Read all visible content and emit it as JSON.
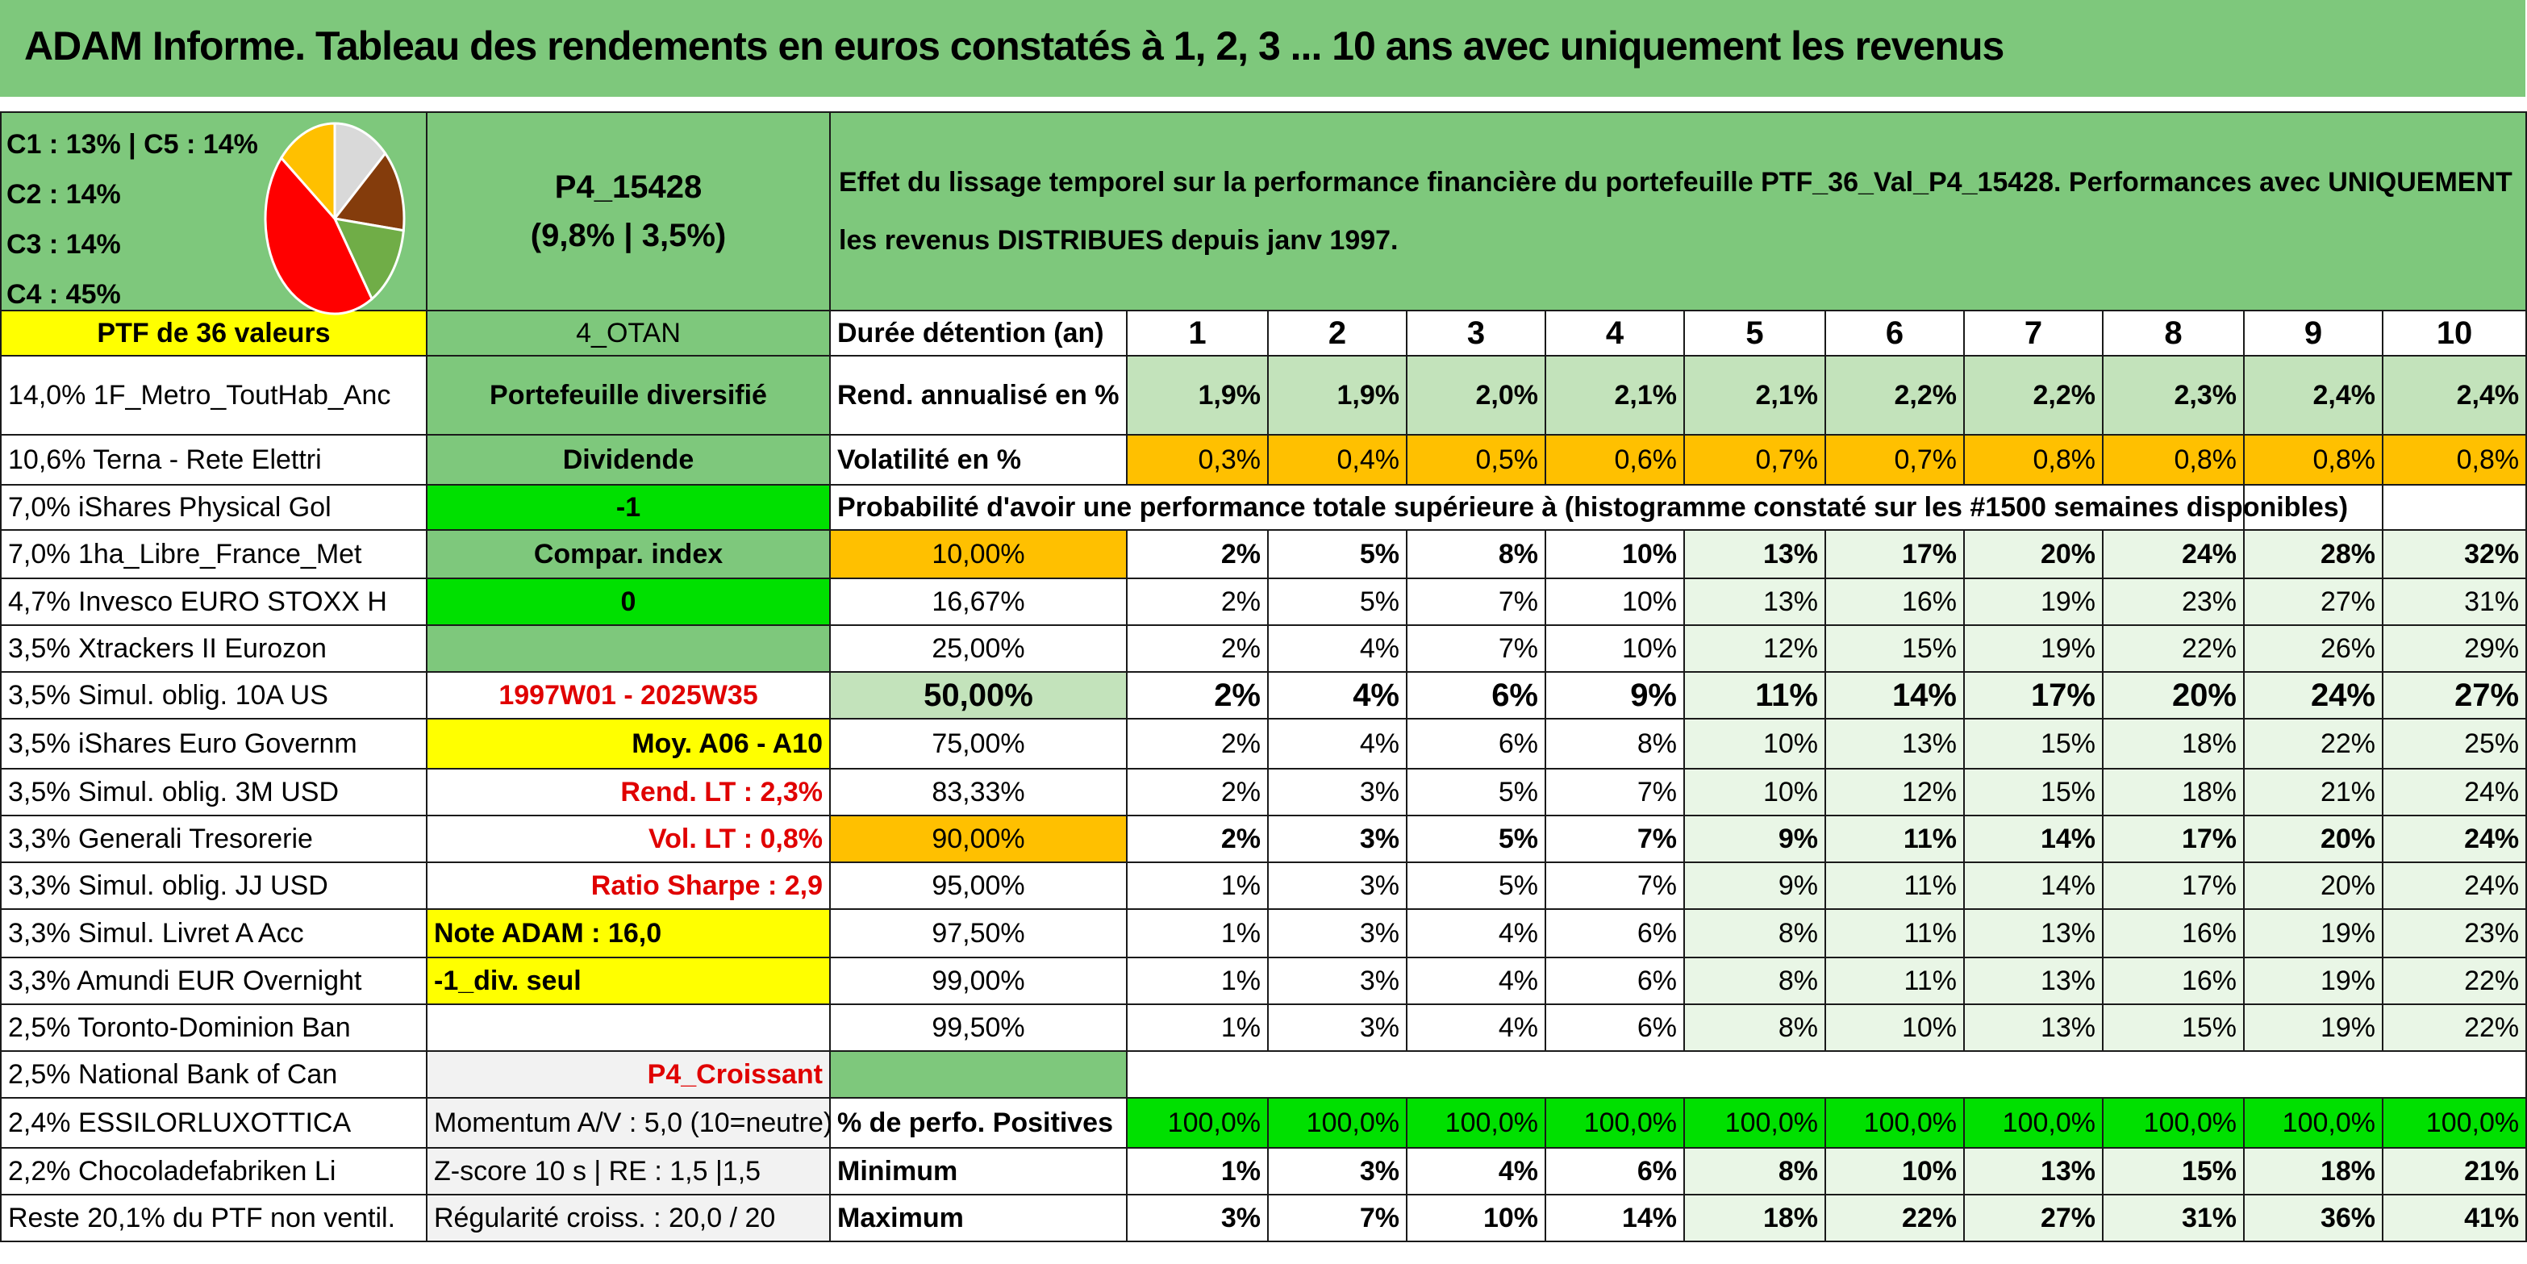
{
  "title": "ADAM Informe. Tableau des rendements en euros constatés à 1, 2, 3 ... 10 ans avec uniquement les revenus",
  "pie": {
    "labels": [
      "C1 : 13% | C5 : 14%",
      "C2 : 14%",
      "C3 : 14%",
      "C4 : 45%"
    ],
    "slices": [
      {
        "name": "C1",
        "value": 13,
        "color": "#d9d9d9"
      },
      {
        "name": "C2",
        "value": 14,
        "color": "#843c0c"
      },
      {
        "name": "C3",
        "value": 14,
        "color": "#70ad47"
      },
      {
        "name": "C4",
        "value": 45,
        "color": "#ff0000"
      },
      {
        "name": "C5",
        "value": 14,
        "color": "#ffc000"
      }
    ]
  },
  "portfolio": {
    "code": "P4_15428",
    "perf": "(9,8% | 3,5%)",
    "description": "Effet du lissage temporel sur la performance financière du portefeuille PTF_36_Val_P4_15428. Performances avec UNIQUEMENT les revenus DISTRIBUES depuis janv 1997.",
    "ptf_label": "PTF de 36 valeurs",
    "otan": "4_OTAN",
    "type": "Portefeuille diversifié",
    "dividende": "Dividende",
    "minus_one": "-1",
    "compar_index": "Compar. index",
    "zero": "0",
    "period": "1997W01 - 2025W35",
    "moy": "Moy. A06 - A10",
    "rend_lt": "Rend. LT : 2,3%",
    "vol_lt": "Vol. LT : 0,8%",
    "sharpe": "Ratio Sharpe : 2,9",
    "note": "Note ADAM : 16,0",
    "div_seul": "-1_div. seul",
    "croissant": "P4_Croissant",
    "momentum": "Momentum A/V : 5,0 (10=neutre)",
    "zscore": "Z-score 10 s | RE : 1,5 |1,5",
    "regularite": "Régularité croiss. : 20,0 / 20"
  },
  "holdings": [
    "14,0% 1F_Metro_ToutHab_Anc",
    "10,6% Terna - Rete Elettri",
    "7,0% iShares Physical Gol",
    "7,0% 1ha_Libre_France_Met",
    "4,7% Invesco EURO STOXX H",
    "3,5% Xtrackers II Eurozon",
    "3,5% Simul. oblig. 10A US",
    "3,5% iShares Euro Governm",
    "3,5% Simul. oblig. 3M USD",
    "3,3% Generali Tresorerie",
    "3,3% Simul. oblig. JJ USD",
    "3,3% Simul. Livret A Acc",
    "3,3% Amundi EUR Overnight",
    "2,5% Toronto-Dominion Ban",
    "2,5% National Bank of Can",
    "2,4% ESSILORLUXOTTICA",
    "2,2% Chocoladefabriken Li",
    "Reste 20,1% du PTF non ventil."
  ],
  "table": {
    "duree_label": "Durée détention (an)",
    "years": [
      "1",
      "2",
      "3",
      "4",
      "5",
      "6",
      "7",
      "8",
      "9",
      "10"
    ],
    "rend_label": "Rend. annualisé en %",
    "rend": [
      "1,9%",
      "1,9%",
      "2,0%",
      "2,1%",
      "2,1%",
      "2,2%",
      "2,2%",
      "2,3%",
      "2,4%",
      "2,4%"
    ],
    "vol_label": "Volatilité en %",
    "vol": [
      "0,3%",
      "0,4%",
      "0,5%",
      "0,6%",
      "0,7%",
      "0,7%",
      "0,8%",
      "0,8%",
      "0,8%",
      "0,8%"
    ],
    "prob_label": "Probabilité d'avoir une performance totale supérieure à (histogramme constaté sur les #1500 semaines disponibles)",
    "prob_rows": [
      {
        "pct": "10,00%",
        "values": [
          "2%",
          "5%",
          "8%",
          "10%",
          "13%",
          "17%",
          "20%",
          "24%",
          "28%",
          "32%"
        ]
      },
      {
        "pct": "16,67%",
        "values": [
          "2%",
          "5%",
          "7%",
          "10%",
          "13%",
          "16%",
          "19%",
          "23%",
          "27%",
          "31%"
        ]
      },
      {
        "pct": "25,00%",
        "values": [
          "2%",
          "4%",
          "7%",
          "10%",
          "12%",
          "15%",
          "19%",
          "22%",
          "26%",
          "29%"
        ]
      },
      {
        "pct": "50,00%",
        "values": [
          "2%",
          "4%",
          "6%",
          "9%",
          "11%",
          "14%",
          "17%",
          "20%",
          "24%",
          "27%"
        ]
      },
      {
        "pct": "75,00%",
        "values": [
          "2%",
          "4%",
          "6%",
          "8%",
          "10%",
          "13%",
          "15%",
          "18%",
          "22%",
          "25%"
        ]
      },
      {
        "pct": "83,33%",
        "values": [
          "2%",
          "3%",
          "5%",
          "7%",
          "10%",
          "12%",
          "15%",
          "18%",
          "21%",
          "24%"
        ]
      },
      {
        "pct": "90,00%",
        "values": [
          "2%",
          "3%",
          "5%",
          "7%",
          "9%",
          "11%",
          "14%",
          "17%",
          "20%",
          "24%"
        ]
      },
      {
        "pct": "95,00%",
        "values": [
          "1%",
          "3%",
          "5%",
          "7%",
          "9%",
          "11%",
          "14%",
          "17%",
          "20%",
          "24%"
        ]
      },
      {
        "pct": "97,50%",
        "values": [
          "1%",
          "3%",
          "4%",
          "6%",
          "8%",
          "11%",
          "13%",
          "16%",
          "19%",
          "23%"
        ]
      },
      {
        "pct": "99,00%",
        "values": [
          "1%",
          "3%",
          "4%",
          "6%",
          "8%",
          "11%",
          "13%",
          "16%",
          "19%",
          "22%"
        ]
      },
      {
        "pct": "99,50%",
        "values": [
          "1%",
          "3%",
          "4%",
          "6%",
          "8%",
          "10%",
          "13%",
          "15%",
          "19%",
          "22%"
        ]
      }
    ],
    "pos_label": "% de perfo. Positives",
    "pos": [
      "100,0%",
      "100,0%",
      "100,0%",
      "100,0%",
      "100,0%",
      "100,0%",
      "100,0%",
      "100,0%",
      "100,0%",
      "100,0%"
    ],
    "min_label": "Minimum",
    "min": [
      "1%",
      "3%",
      "4%",
      "6%",
      "8%",
      "10%",
      "13%",
      "15%",
      "18%",
      "21%"
    ],
    "max_label": "Maximum",
    "max": [
      "3%",
      "7%",
      "10%",
      "14%",
      "18%",
      "22%",
      "27%",
      "31%",
      "36%",
      "41%"
    ]
  }
}
